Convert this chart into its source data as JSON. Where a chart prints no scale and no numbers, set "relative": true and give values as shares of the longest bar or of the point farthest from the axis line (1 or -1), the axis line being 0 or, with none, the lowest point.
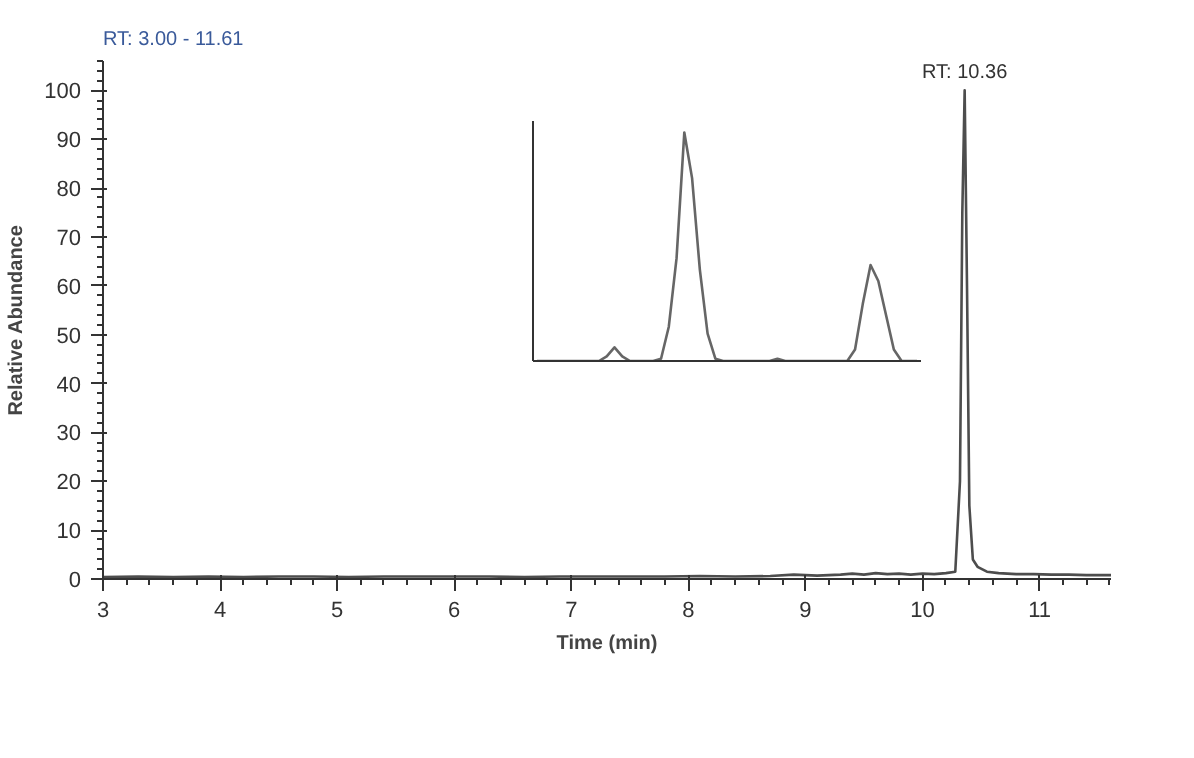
{
  "chart_data": [
    {
      "type": "line",
      "title": "RT: 3.00 - 11.61",
      "xlabel": "Time (min)",
      "ylabel": "Relative Abundance",
      "xlim": [
        3,
        11.61
      ],
      "ylim": [
        0,
        106
      ],
      "xticks": [
        3,
        4,
        5,
        6,
        7,
        8,
        9,
        10,
        11
      ],
      "yticks": [
        0,
        10,
        20,
        30,
        40,
        50,
        60,
        70,
        80,
        90,
        100
      ],
      "grid": false,
      "marker": "none",
      "line_style": "solid",
      "series": [
        {
          "color": "#4d4d4d",
          "x": [
            3.0,
            3.3,
            3.6,
            3.9,
            4.2,
            4.5,
            4.8,
            5.1,
            5.4,
            5.7,
            6.0,
            6.3,
            6.6,
            6.9,
            7.2,
            7.5,
            7.8,
            8.1,
            8.4,
            8.7,
            8.9,
            9.1,
            9.3,
            9.4,
            9.5,
            9.6,
            9.7,
            9.8,
            9.9,
            10.0,
            10.1,
            10.2,
            10.28,
            10.32,
            10.34,
            10.36,
            10.38,
            10.4,
            10.43,
            10.47,
            10.55,
            10.65,
            10.8,
            10.95,
            11.1,
            11.25,
            11.4,
            11.61
          ],
          "values": [
            0.4,
            0.5,
            0.4,
            0.5,
            0.4,
            0.5,
            0.5,
            0.4,
            0.5,
            0.5,
            0.5,
            0.5,
            0.4,
            0.5,
            0.5,
            0.5,
            0.5,
            0.6,
            0.5,
            0.6,
            0.9,
            0.7,
            0.9,
            1.1,
            0.9,
            1.2,
            1.0,
            1.1,
            0.9,
            1.1,
            1.0,
            1.2,
            1.5,
            20,
            75,
            100,
            60,
            15,
            4,
            2.5,
            1.5,
            1.2,
            1.0,
            1.0,
            0.9,
            0.9,
            0.8,
            0.8
          ]
        }
      ],
      "annotations": [
        {
          "text": "RT: 10.36",
          "x": 10.36,
          "y": 100
        }
      ]
    },
    {
      "type": "line",
      "relative": true,
      "tick_labels": false,
      "grid": false,
      "marker": "none",
      "line_style": "solid",
      "categories": [
        null,
        null,
        null,
        null,
        null,
        null,
        null,
        null,
        null,
        null,
        null,
        null,
        null,
        null,
        null,
        null,
        null,
        null,
        null,
        null,
        null,
        null,
        null,
        null,
        null,
        null,
        null,
        null,
        null,
        null,
        null,
        null,
        null,
        null,
        null,
        null,
        null,
        null,
        null,
        null,
        null,
        null,
        null,
        null,
        null,
        null,
        null,
        null,
        null,
        null
      ],
      "series": [
        {
          "color": "#666666",
          "values": [
            0,
            0,
            0,
            0,
            0,
            0,
            0,
            0,
            0,
            0.02,
            0.06,
            0.02,
            0,
            0,
            0,
            0,
            0.01,
            0.15,
            0.45,
            1.0,
            0.8,
            0.4,
            0.12,
            0.01,
            0,
            0,
            0,
            0,
            0,
            0,
            0,
            0.01,
            0,
            0,
            0,
            0,
            0,
            0,
            0,
            0,
            0,
            0.05,
            0.25,
            0.42,
            0.35,
            0.2,
            0.05,
            0,
            0,
            0
          ]
        }
      ]
    }
  ]
}
